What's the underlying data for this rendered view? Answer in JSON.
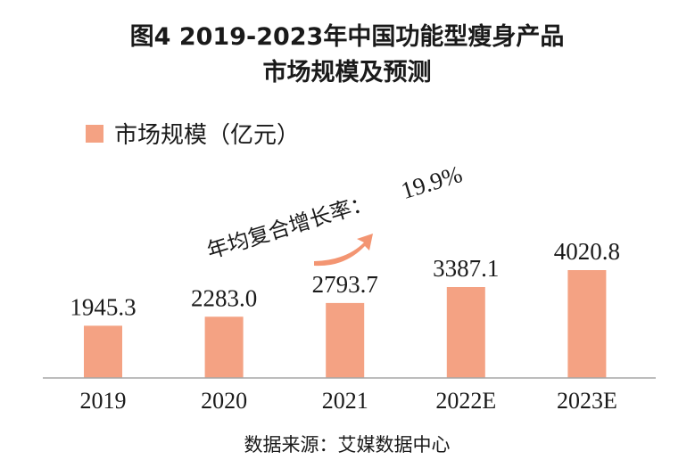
{
  "chart_data": {
    "type": "bar",
    "title_line1": "图4 2019-2023年中国功能型瘦身产品",
    "title_line2": "市场规模及预测",
    "categories": [
      "2019",
      "2020",
      "2021",
      "2022E",
      "2023E"
    ],
    "series": [
      {
        "name": "市场规模（亿元）",
        "values": [
          1945.3,
          2283.0,
          2793.7,
          3387.1,
          4020.8
        ],
        "labels": [
          "1945.3",
          "2283.0",
          "2793.7",
          "3387.1",
          "4020.8"
        ]
      }
    ],
    "ylim": [
      0,
      4500
    ],
    "grid": false,
    "legend_position": "top-left",
    "annotation": {
      "label": "年均复合增长率：",
      "value": "19.9%"
    },
    "source": "数据来源：艾媒数据中心"
  },
  "colors": {
    "bar": "#F4A283",
    "arrow": "#F39572",
    "axis": "#a6a6a6",
    "text": "#1a1a1a"
  }
}
